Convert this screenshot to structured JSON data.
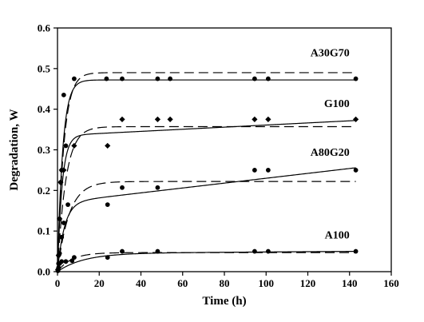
{
  "chart_data": {
    "type": "scatter",
    "title": "",
    "xlabel": "Time (h)",
    "ylabel": "Degradation, W",
    "xlim": [
      0,
      160
    ],
    "ylim": [
      0.0,
      0.6
    ],
    "xticks": [
      0,
      20,
      40,
      60,
      80,
      100,
      120,
      140,
      160
    ],
    "yticks": [
      0.0,
      0.1,
      0.2,
      0.3,
      0.4,
      0.5,
      0.6
    ],
    "xtick_labels": [
      "0",
      "20",
      "40",
      "60",
      "80",
      "100",
      "120",
      "140",
      "160"
    ],
    "ytick_labels": [
      "0.0",
      "0.1",
      "0.2",
      "0.3",
      "0.4",
      "0.5",
      "0.6"
    ],
    "grid": false,
    "legend": "none",
    "series": [
      {
        "name": "A30G70",
        "marker": "circle",
        "points": [
          [
            0.2,
            0.005
          ],
          [
            0.5,
            0.04
          ],
          [
            1,
            0.13
          ],
          [
            1.5,
            0.22
          ],
          [
            2,
            0.25
          ],
          [
            3,
            0.435
          ],
          [
            4,
            0.31
          ],
          [
            8,
            0.475
          ],
          [
            23.5,
            0.475
          ],
          [
            31,
            0.475
          ],
          [
            48,
            0.475
          ],
          [
            54,
            0.475
          ],
          [
            94.5,
            0.475
          ],
          [
            101,
            0.475
          ],
          [
            143,
            0.475
          ]
        ],
        "fit_solid": {
          "plateau": 0.472,
          "k": 0.4,
          "slope": 0.0
        },
        "fit_dashed": {
          "plateau": 0.49,
          "k": 0.33,
          "slope": 0.0
        }
      },
      {
        "name": "G100",
        "marker": "diamond",
        "points": [
          [
            0.2,
            0.005
          ],
          [
            0.5,
            0.04
          ],
          [
            1,
            0.13
          ],
          [
            1.5,
            0.22
          ],
          [
            2,
            0.25
          ],
          [
            3,
            0.25
          ],
          [
            8,
            0.31
          ],
          [
            24,
            0.31
          ],
          [
            31,
            0.375
          ],
          [
            48,
            0.375
          ],
          [
            54,
            0.375
          ],
          [
            94.5,
            0.375
          ],
          [
            101,
            0.375
          ],
          [
            143,
            0.375
          ]
        ],
        "fit_solid": {
          "plateau": 0.335,
          "k": 0.45,
          "slope": 0.00026
        },
        "fit_dashed": {
          "plateau": 0.357,
          "k": 0.25,
          "slope": 0.0
        }
      },
      {
        "name": "A80G20",
        "marker": "circle",
        "points": [
          [
            0.2,
            0.003
          ],
          [
            0.5,
            0.02
          ],
          [
            1,
            0.045
          ],
          [
            2,
            0.085
          ],
          [
            3,
            0.12
          ],
          [
            5,
            0.165
          ],
          [
            24,
            0.165
          ],
          [
            31,
            0.207
          ],
          [
            48,
            0.207
          ],
          [
            94.5,
            0.25
          ],
          [
            101,
            0.25
          ],
          [
            143,
            0.25
          ]
        ],
        "fit_solid": {
          "plateau": 0.17,
          "k": 0.3,
          "slope": 0.0006
        },
        "fit_dashed": {
          "plateau": 0.222,
          "k": 0.18,
          "slope": 0.0
        }
      },
      {
        "name": "A100",
        "marker": "circle",
        "points": [
          [
            0.2,
            0.002
          ],
          [
            0.5,
            0.01
          ],
          [
            1,
            0.02
          ],
          [
            2,
            0.025
          ],
          [
            4,
            0.025
          ],
          [
            7,
            0.027
          ],
          [
            8,
            0.035
          ],
          [
            24,
            0.035
          ],
          [
            31,
            0.05
          ],
          [
            48,
            0.05
          ],
          [
            94.5,
            0.05
          ],
          [
            101,
            0.05
          ],
          [
            143,
            0.05
          ]
        ],
        "fit_solid": {
          "plateau": 0.045,
          "k": 0.08,
          "slope": 3.5e-05
        },
        "fit_dashed": {
          "plateau": 0.047,
          "k": 0.15,
          "slope": 0.0
        }
      }
    ]
  }
}
